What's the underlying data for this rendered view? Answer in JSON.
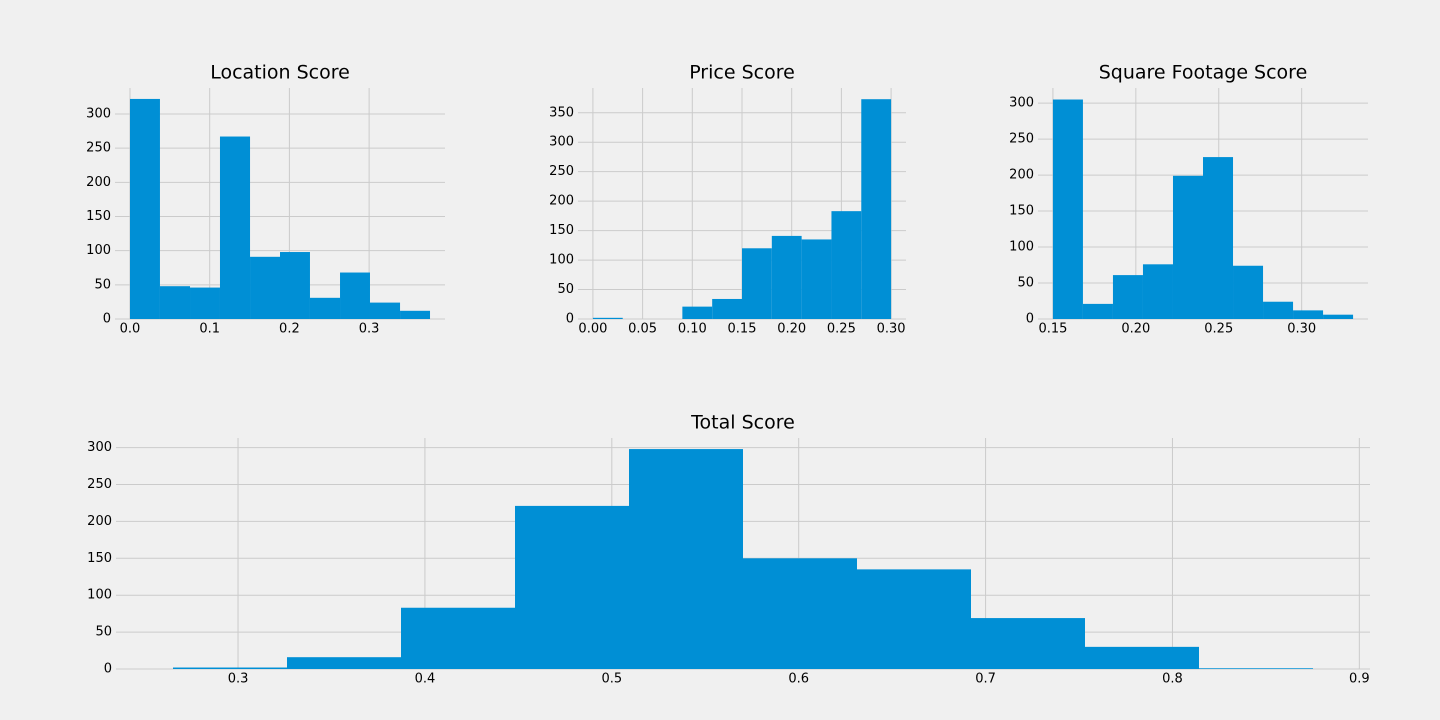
{
  "chart_data": [
    {
      "type": "histogram",
      "title": "Location Score",
      "color": "#008fd5",
      "grid": true,
      "bins": [
        0,
        0.0376,
        0.0753,
        0.1129,
        0.1506,
        0.1882,
        0.2258,
        0.2635,
        0.3011,
        0.3388,
        0.3764
      ],
      "values": [
        322,
        48,
        46,
        267,
        91,
        98,
        31,
        68,
        24,
        12
      ],
      "xlim": [
        -0.0188,
        0.3952
      ],
      "ylim": [
        0,
        338
      ],
      "xticks": [
        {
          "value": 0,
          "label": "0.0"
        },
        0.1,
        0.2,
        0.3
      ],
      "yticks": [
        0,
        50,
        100,
        150,
        200,
        250,
        300
      ]
    },
    {
      "type": "histogram",
      "title": "Price Score",
      "color": "#008fd5",
      "grid": true,
      "bins": [
        0,
        0.03,
        0.06,
        0.09,
        0.12,
        0.15,
        0.18,
        0.21,
        0.24,
        0.27,
        0.3
      ],
      "values": [
        2,
        0,
        0,
        21,
        34,
        120,
        141,
        135,
        183,
        373
      ],
      "xlim": [
        -0.015,
        0.315
      ],
      "ylim": [
        0,
        392
      ],
      "xticks": [
        {
          "value": 0,
          "label": "0.00"
        },
        0.05,
        {
          "value": 0.1,
          "label": "0.10"
        },
        0.15,
        {
          "value": 0.2,
          "label": "0.20"
        },
        0.25,
        {
          "value": 0.3,
          "label": "0.30"
        }
      ],
      "yticks": [
        0,
        50,
        100,
        150,
        200,
        250,
        300,
        350
      ]
    },
    {
      "type": "histogram",
      "title": "Square Footage Score",
      "color": "#008fd5",
      "grid": true,
      "bins": [
        0.15,
        0.1681,
        0.1862,
        0.2043,
        0.2224,
        0.2405,
        0.2586,
        0.2767,
        0.2948,
        0.3129,
        0.331
      ],
      "values": [
        305,
        21,
        61,
        76,
        199,
        225,
        74,
        24,
        12,
        6
      ],
      "xlim": [
        0.141,
        0.34
      ],
      "ylim": [
        0,
        321
      ],
      "xticks": [
        0.15,
        {
          "value": 0.2,
          "label": "0.20"
        },
        0.25,
        {
          "value": 0.3,
          "label": "0.30"
        }
      ],
      "yticks": [
        0,
        50,
        100,
        150,
        200,
        250,
        300
      ]
    },
    {
      "type": "histogram",
      "title": "Total Score",
      "color": "#008fd5",
      "grid": true,
      "bins": [
        0.2652,
        0.3262,
        0.3872,
        0.4482,
        0.5092,
        0.5702,
        0.6312,
        0.6922,
        0.7532,
        0.8142,
        0.8752
      ],
      "values": [
        2,
        16,
        83,
        221,
        298,
        150,
        135,
        69,
        30,
        1
      ],
      "xlim": [
        0.2347,
        0.9057
      ],
      "ylim": [
        0,
        313
      ],
      "xticks": [
        0.3,
        0.4,
        0.5,
        0.6,
        0.7,
        0.8,
        0.9
      ],
      "yticks": [
        0,
        50,
        100,
        150,
        200,
        250,
        300
      ]
    }
  ]
}
